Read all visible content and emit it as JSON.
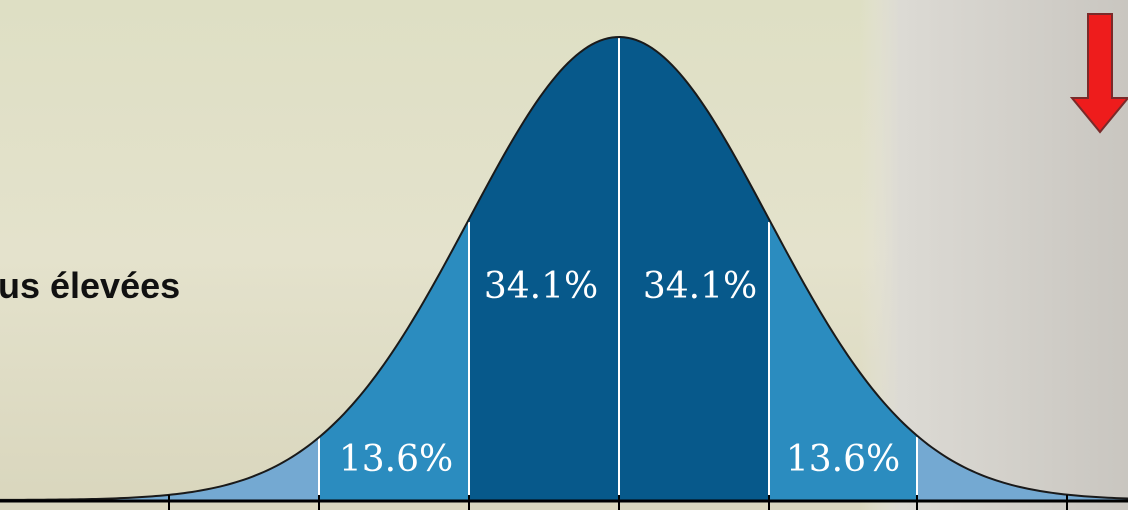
{
  "slide": {
    "text": "us élevées",
    "figure": {
      "labels": [
        "34.1%",
        "34.1%",
        "13.6%",
        "13.6%"
      ]
    }
  }
}
